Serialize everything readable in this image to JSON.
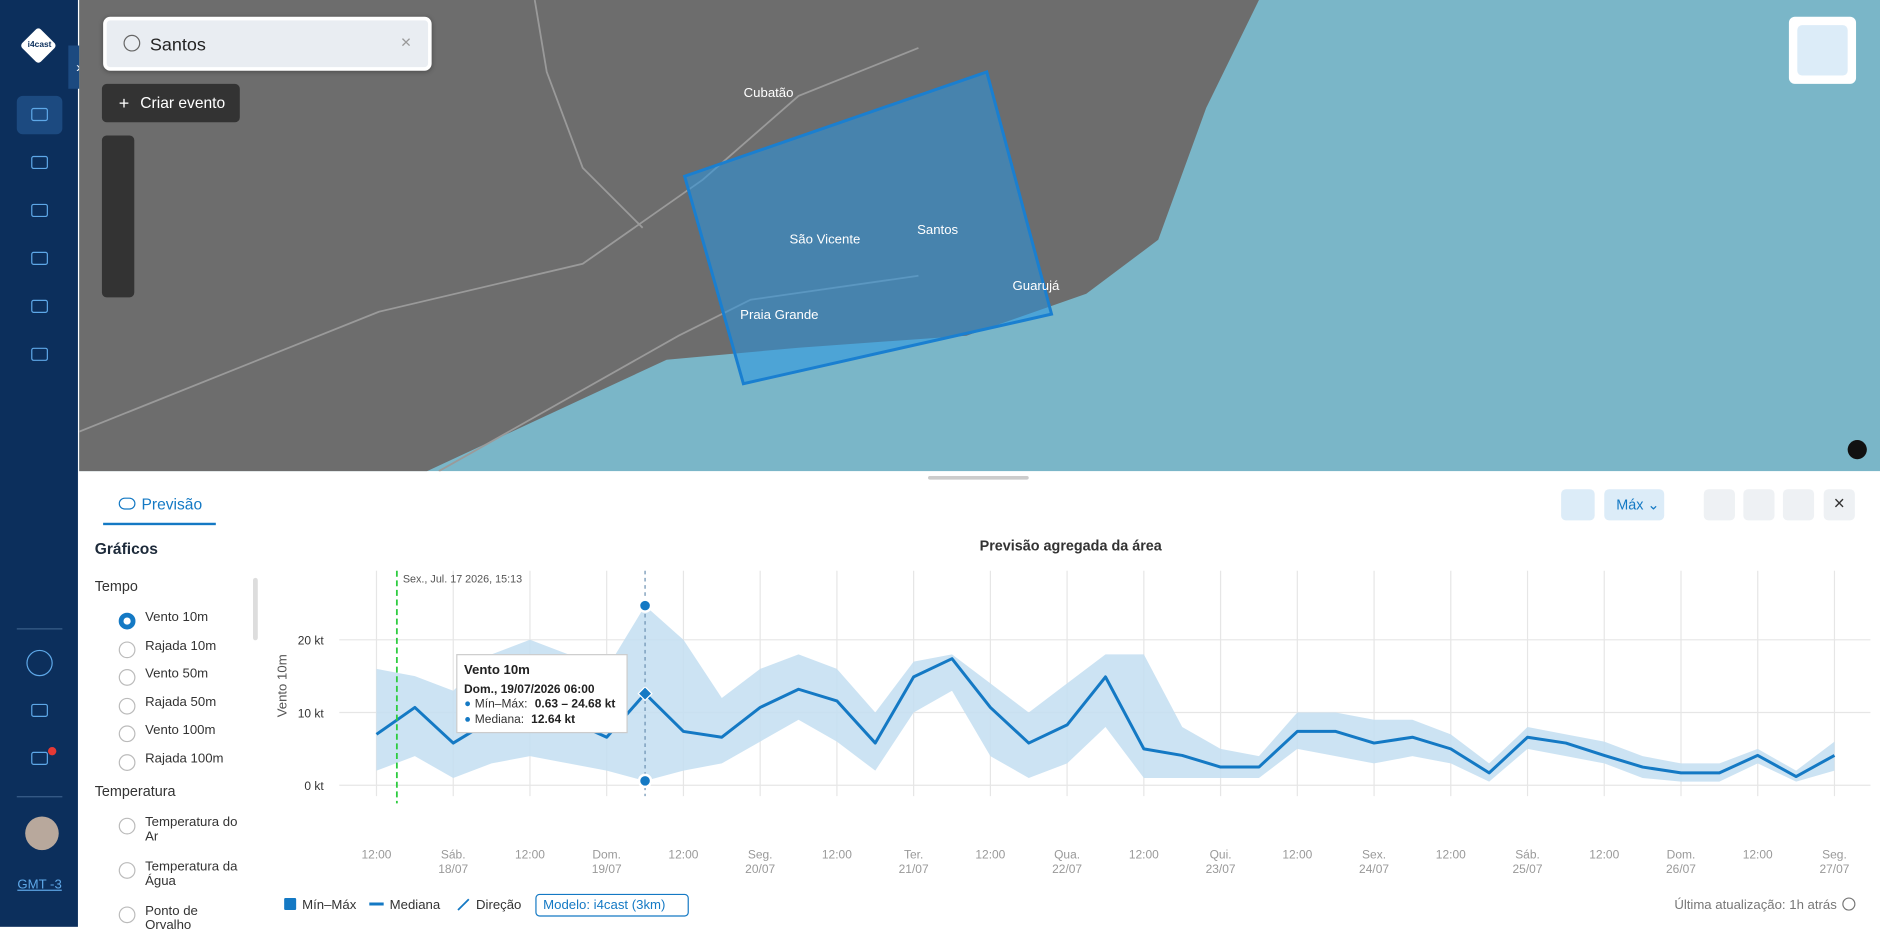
{
  "sidebar": {
    "logo": "i4cast",
    "timezone": "GMT -3"
  },
  "search": {
    "query": "Santos"
  },
  "create_event": "Criar evento",
  "map": {
    "labels": [
      "Cubatão",
      "São Vicente",
      "Santos",
      "Guarujá",
      "Praia Grande"
    ]
  },
  "panel": {
    "tab": "Previsão",
    "stat_button": "Máx",
    "section": "Gráficos",
    "groups": [
      {
        "name": "Tempo",
        "options": [
          "Vento 10m",
          "Rajada 10m",
          "Vento 50m",
          "Rajada 50m",
          "Vento 100m",
          "Rajada 100m"
        ],
        "selected": 0
      },
      {
        "name": "Temperatura",
        "options": [
          "Temperatura do Ar",
          "Temperatura da Água",
          "Ponto de Orvalho"
        ]
      }
    ],
    "legend_direction": "Direção",
    "model": "Modelo: i4cast (3km)",
    "updated": "Última atualização: 1h atrás"
  },
  "chart_data": {
    "type": "line",
    "title": "Previsão agregada da área",
    "y_label": "Vento 10m",
    "now_marker": "Sex., Jul. 17 2026, 15:13",
    "categories": [
      "12:00",
      null,
      "Sáb. 18/07",
      null,
      "12:00",
      null,
      "Dom. 19/07",
      null,
      "12:00",
      null,
      "Seg. 20/07",
      null,
      "12:00",
      null,
      "Ter. 21/07",
      null,
      "12:00",
      null,
      "Qua. 22/07",
      null,
      "12:00",
      null,
      "Qui. 23/07",
      null,
      "12:00",
      null,
      "Sex. 24/07",
      null,
      "12:00",
      null,
      "Sáb. 25/07",
      null,
      "12:00",
      null,
      "Dom. 26/07",
      null,
      "12:00",
      null,
      "Seg. 27/07"
    ],
    "band": {
      "name": "Mín–Máx",
      "color": "#c3def1",
      "max": [
        16,
        15,
        13,
        18,
        20,
        18,
        16,
        24.7,
        20,
        12,
        16,
        18,
        16,
        10,
        17,
        18,
        14,
        10,
        14,
        18,
        18,
        8,
        5,
        4,
        10,
        10,
        9,
        9,
        7,
        3,
        8,
        7,
        6,
        4,
        3,
        3,
        5,
        2,
        6
      ],
      "min": [
        2,
        4,
        1,
        3,
        4,
        3,
        2,
        0.6,
        2,
        3,
        6,
        9,
        6,
        2,
        10,
        13,
        4,
        1,
        3,
        8,
        1,
        1,
        1,
        1,
        5,
        4,
        3,
        4,
        3,
        0.5,
        5,
        4,
        3,
        1,
        0.5,
        0.5,
        3,
        0.5,
        2
      ]
    },
    "series": [
      {
        "name": "Mediana",
        "color": "#1479c4",
        "values": [
          7,
          10.7,
          5.8,
          9,
          10.7,
          9,
          6.6,
          12.6,
          7.4,
          6.6,
          10.7,
          13.2,
          11.6,
          5.8,
          14.9,
          17.4,
          10.7,
          5.8,
          8.3,
          14.9,
          5,
          4.1,
          2.5,
          2.5,
          7.4,
          7.4,
          5.8,
          6.6,
          5,
          1.7,
          6.6,
          5.8,
          4.1,
          2.5,
          1.7,
          1.7,
          4.1,
          1.2,
          4.1
        ]
      }
    ],
    "ylim": [
      -1.5,
      29.5
    ],
    "yticks": [
      {
        "value": 0,
        "label": "0 kt"
      },
      {
        "value": 10,
        "label": "10 kt"
      },
      {
        "value": 20,
        "label": "20 kt"
      }
    ],
    "grid": true,
    "tooltip": {
      "index": 7,
      "title": "Vento 10m",
      "date": "Dom., 19/07/2026 06:00",
      "range_label": "Mín–Máx:",
      "range_value": "0.63 – 24.68 kt",
      "median_label": "Mediana:",
      "median_value": "12.64 kt"
    }
  }
}
